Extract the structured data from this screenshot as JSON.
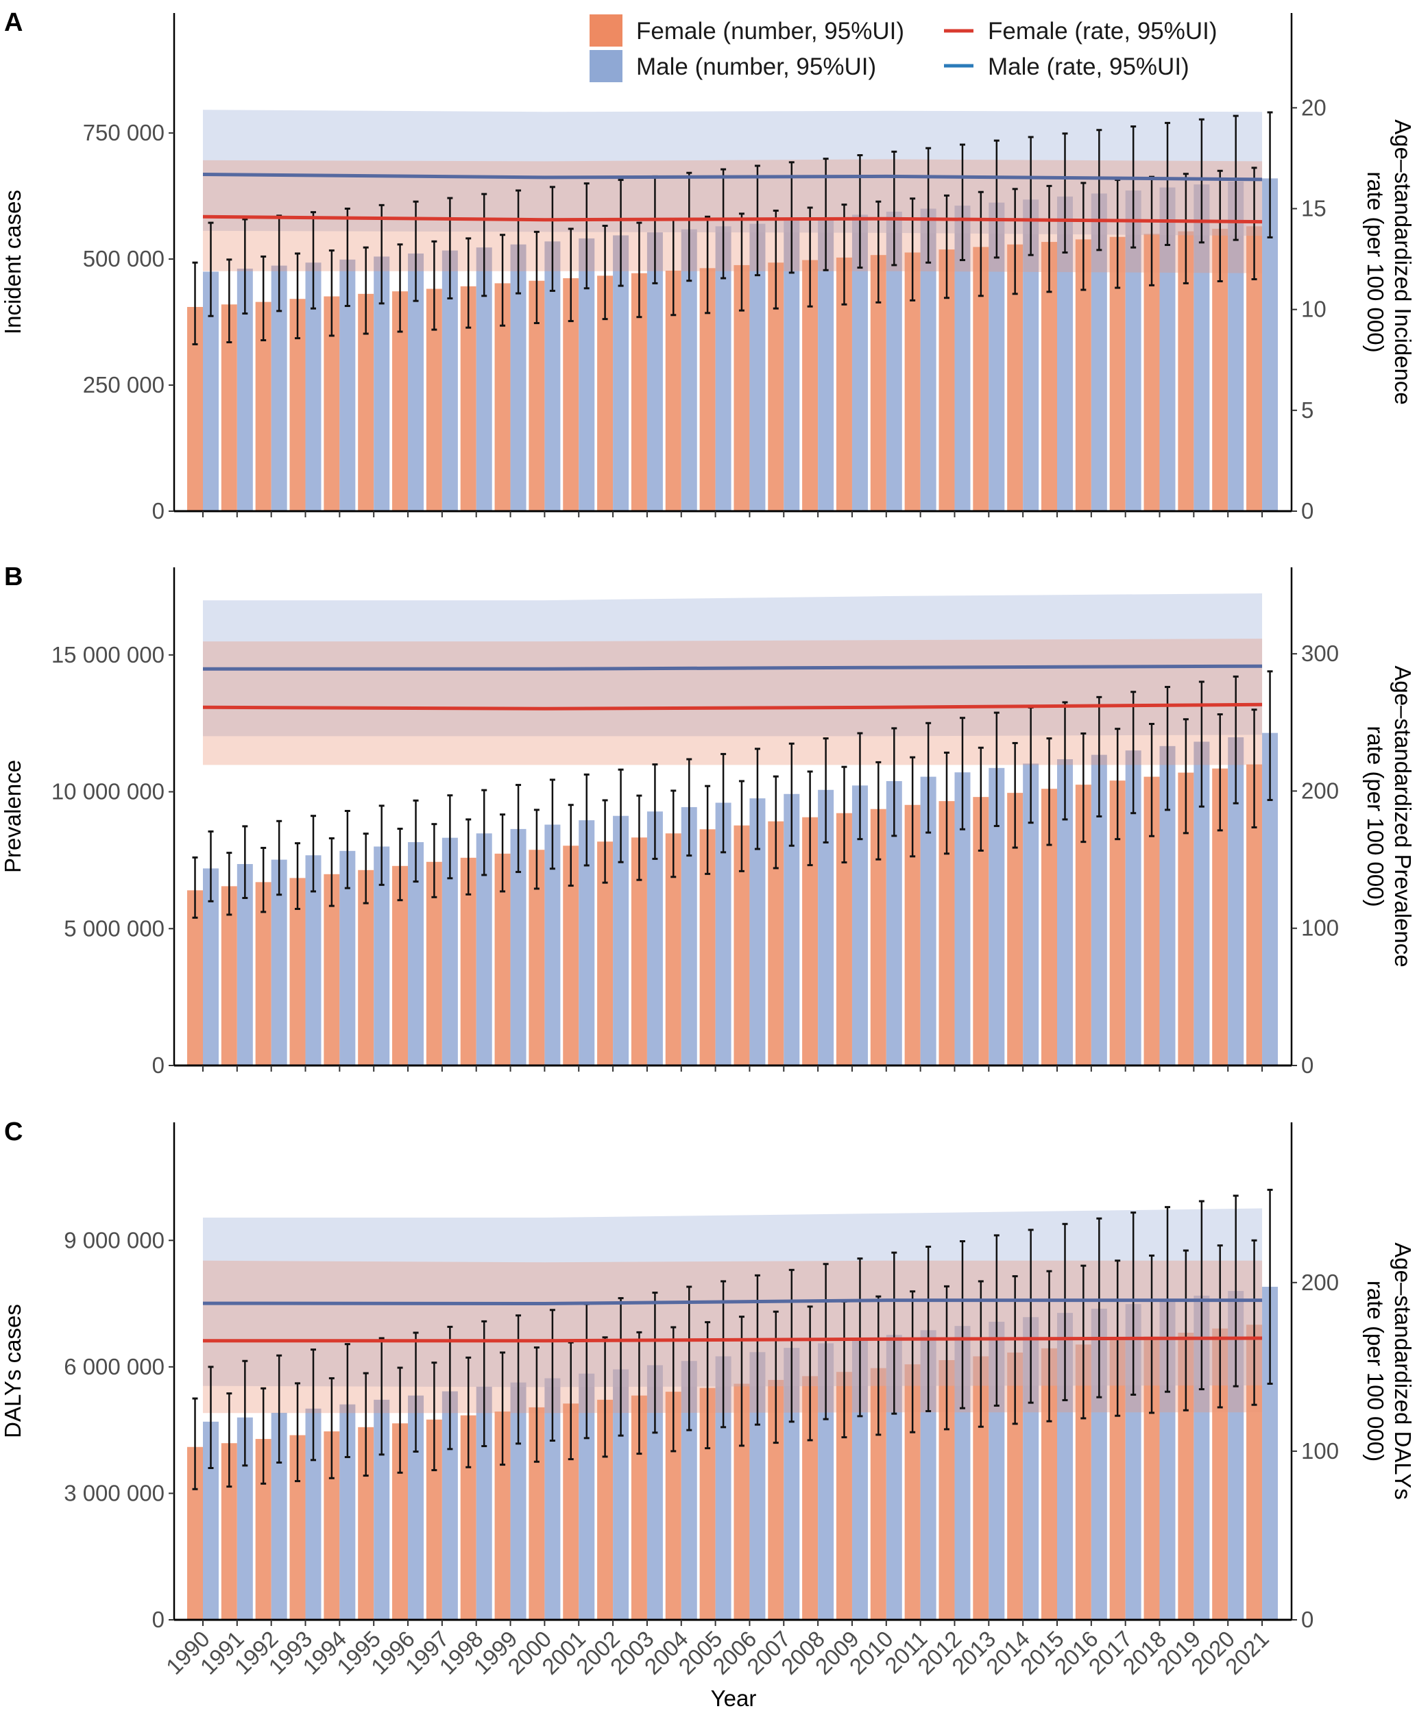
{
  "legend": {
    "female_number": "Female (number, 95%UI)",
    "male_number": "Male (number, 95%UI)",
    "female_rate": "Female (rate, 95%UI)",
    "male_rate": "Male (rate, 95%UI)"
  },
  "colors": {
    "female_bar": "#F09E7C",
    "male_bar": "#A3B6DB",
    "female_legend_bar": "#EE8A62",
    "male_legend_bar": "#8FA8D4",
    "female_rate_line": "#D93A2E",
    "male_rate_line": "#5569A0",
    "male_rate_legend": "#2B7BBA",
    "female_band": "#EB9678",
    "male_band": "#B0BEE1",
    "errorbar": "#111111"
  },
  "xlabel": "Year",
  "years": [
    1990,
    1991,
    1992,
    1993,
    1994,
    1995,
    1996,
    1997,
    1998,
    1999,
    2000,
    2001,
    2002,
    2003,
    2004,
    2005,
    2006,
    2007,
    2008,
    2009,
    2010,
    2011,
    2012,
    2013,
    2014,
    2015,
    2016,
    2017,
    2018,
    2019,
    2020,
    2021
  ],
  "chart_data": [
    {
      "panel": "A",
      "type": "bar",
      "ylabel": "Incident cases",
      "y2label": [
        "Age–standardized Incidence",
        "rate (per 100 000)"
      ],
      "ylim": [
        0,
        988000
      ],
      "y2lim": [
        0,
        24.7
      ],
      "yticks": [
        0,
        250000,
        500000,
        750000
      ],
      "y2ticks": [
        0,
        5,
        10,
        15,
        20
      ],
      "number_multiplier": 1000,
      "female": {
        "values": [
          405,
          410,
          415,
          421,
          426,
          431,
          436,
          441,
          446,
          452,
          457,
          462,
          467,
          472,
          477,
          482,
          488,
          493,
          498,
          503,
          508,
          513,
          519,
          524,
          529,
          534,
          539,
          544,
          550,
          555,
          560,
          565
        ],
        "lower": [
          331,
          335,
          339,
          343,
          348,
          352,
          356,
          360,
          364,
          368,
          373,
          377,
          381,
          385,
          389,
          393,
          398,
          402,
          406,
          410,
          414,
          418,
          423,
          427,
          431,
          435,
          439,
          443,
          448,
          452,
          456,
          460
        ],
        "upper": [
          493,
          499,
          505,
          511,
          517,
          523,
          529,
          535,
          541,
          548,
          554,
          560,
          566,
          572,
          578,
          584,
          590,
          596,
          602,
          608,
          614,
          620,
          626,
          633,
          639,
          645,
          651,
          657,
          663,
          669,
          675,
          681
        ]
      },
      "male": {
        "values": [
          475,
          481,
          487,
          493,
          499,
          505,
          511,
          517,
          523,
          529,
          535,
          541,
          547,
          553,
          559,
          565,
          570,
          576,
          582,
          588,
          594,
          600,
          606,
          612,
          618,
          624,
          630,
          636,
          642,
          648,
          654,
          660
        ],
        "lower": [
          387,
          392,
          397,
          402,
          407,
          412,
          417,
          422,
          427,
          432,
          437,
          442,
          447,
          452,
          457,
          462,
          468,
          473,
          478,
          483,
          488,
          493,
          498,
          503,
          508,
          513,
          518,
          523,
          528,
          533,
          538,
          543
        ],
        "upper": [
          572,
          579,
          586,
          593,
          600,
          607,
          614,
          621,
          629,
          636,
          643,
          650,
          657,
          664,
          671,
          678,
          685,
          692,
          699,
          706,
          713,
          720,
          727,
          735,
          742,
          749,
          756,
          763,
          770,
          777,
          784,
          791
        ]
      },
      "rate_years": [
        1990,
        2000,
        2010,
        2021
      ],
      "female_rate": {
        "values": [
          14.6,
          14.45,
          14.5,
          14.35
        ],
        "lower": [
          11.9,
          11.9,
          11.9,
          11.8
        ],
        "upper": [
          17.4,
          17.35,
          17.45,
          17.35
        ]
      },
      "male_rate": {
        "values": [
          16.7,
          16.55,
          16.6,
          16.45
        ],
        "lower": [
          13.9,
          13.85,
          13.8,
          13.65
        ],
        "upper": [
          19.9,
          19.8,
          19.85,
          19.8
        ]
      }
    },
    {
      "panel": "B",
      "type": "bar",
      "ylabel": "Prevalence",
      "y2label": [
        "Age–standardized Prevalence",
        "rate (per 100 000)"
      ],
      "ylim": [
        0,
        18200000
      ],
      "y2lim": [
        0,
        363
      ],
      "yticks": [
        0,
        5000000,
        10000000,
        15000000
      ],
      "y2ticks": [
        0,
        100,
        200,
        300
      ],
      "number_multiplier": 1000000,
      "female": {
        "values": [
          6.4,
          6.55,
          6.7,
          6.85,
          6.99,
          7.14,
          7.29,
          7.44,
          7.59,
          7.74,
          7.88,
          8.03,
          8.18,
          8.33,
          8.48,
          8.63,
          8.77,
          8.92,
          9.07,
          9.22,
          9.37,
          9.52,
          9.66,
          9.81,
          9.96,
          10.11,
          10.26,
          10.41,
          10.55,
          10.7,
          10.85,
          11.0
        ],
        "lower": [
          5.4,
          5.51,
          5.61,
          5.72,
          5.83,
          5.93,
          6.04,
          6.15,
          6.25,
          6.36,
          6.46,
          6.57,
          6.68,
          6.78,
          6.89,
          7.0,
          7.1,
          7.21,
          7.32,
          7.42,
          7.53,
          7.64,
          7.74,
          7.85,
          7.96,
          8.06,
          8.17,
          8.27,
          8.38,
          8.49,
          8.59,
          8.7
        ],
        "upper": [
          7.6,
          7.77,
          7.95,
          8.12,
          8.3,
          8.47,
          8.65,
          8.82,
          8.99,
          9.17,
          9.34,
          9.52,
          9.69,
          9.86,
          10.04,
          10.21,
          10.39,
          10.56,
          10.74,
          10.91,
          11.08,
          11.26,
          11.43,
          11.61,
          11.78,
          11.95,
          12.13,
          12.3,
          12.48,
          12.65,
          12.83,
          13.0
        ]
      },
      "male": {
        "values": [
          7.2,
          7.36,
          7.52,
          7.68,
          7.84,
          8.0,
          8.16,
          8.32,
          8.48,
          8.64,
          8.8,
          8.96,
          9.12,
          9.28,
          9.44,
          9.6,
          9.76,
          9.92,
          10.07,
          10.23,
          10.39,
          10.55,
          10.71,
          10.87,
          11.03,
          11.19,
          11.35,
          11.51,
          11.67,
          11.83,
          11.99,
          12.15
        ],
        "lower": [
          6.0,
          6.12,
          6.24,
          6.36,
          6.48,
          6.6,
          6.72,
          6.84,
          6.96,
          7.07,
          7.19,
          7.31,
          7.43,
          7.55,
          7.67,
          7.79,
          7.91,
          8.03,
          8.15,
          8.27,
          8.39,
          8.51,
          8.63,
          8.75,
          8.87,
          8.99,
          9.1,
          9.22,
          9.34,
          9.46,
          9.58,
          9.7
        ],
        "upper": [
          8.55,
          8.74,
          8.93,
          9.12,
          9.3,
          9.49,
          9.68,
          9.87,
          10.06,
          10.25,
          10.44,
          10.63,
          10.81,
          11.0,
          11.19,
          11.38,
          11.57,
          11.76,
          11.95,
          12.14,
          12.32,
          12.51,
          12.7,
          12.89,
          13.08,
          13.27,
          13.46,
          13.65,
          13.83,
          14.02,
          14.21,
          14.4
        ]
      },
      "rate_years": [
        1990,
        2000,
        2010,
        2021
      ],
      "female_rate": {
        "values": [
          261,
          260,
          261,
          263
        ],
        "lower": [
          219,
          219,
          219,
          219
        ],
        "upper": [
          309,
          309,
          310,
          311
        ]
      },
      "male_rate": {
        "values": [
          289,
          289,
          290,
          291
        ],
        "lower": [
          240,
          240,
          240,
          241
        ],
        "upper": [
          339,
          339,
          342,
          344
        ]
      }
    },
    {
      "panel": "C",
      "type": "bar",
      "ylabel": "DALYs cases",
      "y2label": [
        "Age–standardized DALYs",
        "rate (per 100 000)"
      ],
      "ylim": [
        0,
        11800000
      ],
      "y2lim": [
        0,
        295
      ],
      "yticks": [
        0,
        3000000,
        6000000,
        9000000
      ],
      "y2ticks": [
        0,
        100,
        200
      ],
      "number_multiplier": 1000000,
      "female": {
        "values": [
          4.1,
          4.19,
          4.29,
          4.38,
          4.47,
          4.57,
          4.66,
          4.75,
          4.85,
          4.94,
          5.04,
          5.13,
          5.22,
          5.32,
          5.41,
          5.5,
          5.6,
          5.69,
          5.78,
          5.88,
          5.97,
          6.06,
          6.16,
          6.25,
          6.34,
          6.44,
          6.53,
          6.63,
          6.72,
          6.81,
          6.91,
          7.0
        ],
        "lower": [
          3.1,
          3.16,
          3.23,
          3.29,
          3.36,
          3.42,
          3.49,
          3.55,
          3.62,
          3.68,
          3.75,
          3.81,
          3.87,
          3.94,
          4.0,
          4.07,
          4.13,
          4.2,
          4.26,
          4.33,
          4.39,
          4.45,
          4.52,
          4.58,
          4.65,
          4.71,
          4.78,
          4.84,
          4.91,
          4.97,
          5.04,
          5.1
        ],
        "upper": [
          5.25,
          5.37,
          5.49,
          5.61,
          5.73,
          5.85,
          5.98,
          6.1,
          6.22,
          6.34,
          6.46,
          6.58,
          6.7,
          6.82,
          6.94,
          7.06,
          7.19,
          7.31,
          7.43,
          7.55,
          7.67,
          7.79,
          7.91,
          8.03,
          8.15,
          8.27,
          8.4,
          8.52,
          8.64,
          8.76,
          8.88,
          9.0
        ]
      },
      "male": {
        "values": [
          4.7,
          4.8,
          4.91,
          5.01,
          5.11,
          5.22,
          5.32,
          5.42,
          5.53,
          5.63,
          5.73,
          5.84,
          5.94,
          6.04,
          6.14,
          6.25,
          6.35,
          6.45,
          6.56,
          6.66,
          6.76,
          6.87,
          6.97,
          7.07,
          7.18,
          7.28,
          7.38,
          7.49,
          7.59,
          7.69,
          7.8,
          7.9
        ],
        "lower": [
          3.6,
          3.66,
          3.73,
          3.79,
          3.86,
          3.92,
          3.99,
          4.05,
          4.12,
          4.18,
          4.25,
          4.31,
          4.37,
          4.44,
          4.5,
          4.57,
          4.63,
          4.7,
          4.76,
          4.83,
          4.89,
          4.95,
          5.02,
          5.08,
          5.15,
          5.21,
          5.28,
          5.34,
          5.41,
          5.47,
          5.54,
          5.6
        ],
        "upper": [
          6.0,
          6.14,
          6.27,
          6.41,
          6.54,
          6.68,
          6.81,
          6.95,
          7.08,
          7.22,
          7.35,
          7.49,
          7.63,
          7.76,
          7.9,
          8.03,
          8.17,
          8.3,
          8.44,
          8.57,
          8.71,
          8.85,
          8.98,
          9.12,
          9.25,
          9.39,
          9.52,
          9.66,
          9.79,
          9.93,
          10.06,
          10.2
        ]
      },
      "rate_years": [
        1990,
        2000,
        2010,
        2021
      ],
      "female_rate": {
        "values": [
          165.5,
          165.5,
          166.5,
          167
        ],
        "lower": [
          122.6,
          122.6,
          123,
          123
        ],
        "upper": [
          213,
          212,
          213,
          213
        ]
      },
      "male_rate": {
        "values": [
          187.7,
          187.5,
          189.5,
          189.5
        ],
        "lower": [
          138.7,
          138,
          138.7,
          139
        ],
        "upper": [
          238.5,
          238.5,
          241,
          244
        ]
      }
    }
  ]
}
